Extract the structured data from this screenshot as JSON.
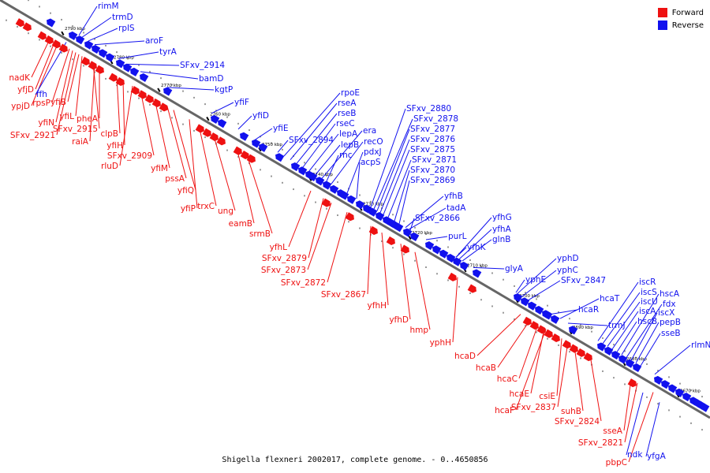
{
  "legend": {
    "items": [
      {
        "label": "Forward",
        "color": "#ee1111"
      },
      {
        "label": "Reverse",
        "color": "#1111ee"
      }
    ]
  },
  "caption": "Shigella flexneri 2002017, complete genome. - 0..4650856",
  "colors": {
    "forward": "#ee1111",
    "reverse": "#1111ee",
    "backbone": "#666666"
  },
  "scale_labels": [
    "2790 kbp",
    "2780 kbp",
    "2770 kbp",
    "2760 kbp",
    "2750 kbp",
    "2740 kbp",
    "2730 kbp",
    "2720 kbp",
    "2710 kbp",
    "2700 kbp",
    "2690 kbp",
    "2680 kbp",
    "2670 kbp"
  ],
  "forward_genes": [
    "nadK",
    "yfjD",
    "ypjD",
    "rpsP",
    "yfiN",
    "yfiL",
    "yfiB",
    "pheA",
    "SFxv_2915",
    "raiA",
    "SFxv_2921",
    "clpB",
    "yfiH",
    "SFxv_2909",
    "rluD",
    "yfiM",
    "pssA",
    "yfiQ",
    "yfiP",
    "trxC",
    "ung",
    "eamB",
    "srmB",
    "yfhL",
    "SFxv_2879",
    "SFxv_2873",
    "SFxv_2872",
    "SFxv_2867",
    "yfhH",
    "yfhD",
    "hmp",
    "yphH",
    "hcaD",
    "hcaB",
    "hcaC",
    "hcaE",
    "hcaF",
    "csiE",
    "SFxv_2837",
    "suhB",
    "SFxv_2824",
    "sseA",
    "SFxv_2821",
    "pbpC"
  ],
  "reverse_genes": [
    "rimM",
    "trmD",
    "rplS",
    "aroF",
    "tyrA",
    "SFxv_2914",
    "bamD",
    "kgtP",
    "yfiF",
    "yfiD",
    "yfiE",
    "ffh",
    "rpoE",
    "rseA",
    "rseB",
    "rseC",
    "lepA",
    "lepB",
    "era",
    "recO",
    "pdxJ",
    "acpS",
    "rnc",
    "SFxv_2894",
    "SFxv_2880",
    "SFxv_2878",
    "SFxv_2877",
    "SFxv_2876",
    "SFxv_2875",
    "SFxv_2871",
    "SFxv_2870",
    "SFxv_2869",
    "yfhB",
    "tadA",
    "SFxv_2866",
    "purL",
    "yfhG",
    "yfhA",
    "glnB",
    "yfhK",
    "glyA",
    "yphD",
    "yphC",
    "yphE",
    "SFxv_2847",
    "hcaT",
    "hcaR",
    "trmJ",
    "iscR",
    "iscS",
    "iscU",
    "iscA",
    "hscB",
    "hscA",
    "fdx",
    "iscX",
    "pepB",
    "sseB",
    "rlmN",
    "ndk",
    "yfgA"
  ]
}
